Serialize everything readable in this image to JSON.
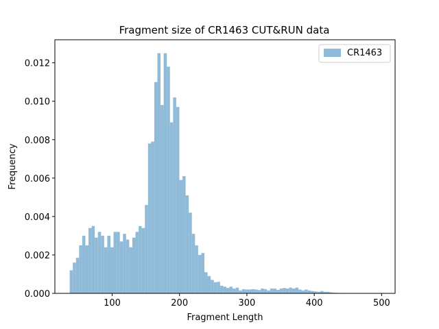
{
  "chart_data": {
    "type": "bar",
    "title": "Fragment size of CR1463 CUT&RUN data",
    "xlabel": "Fragment Length",
    "ylabel": "Frequency",
    "xlim": [
      15,
      520
    ],
    "ylim": [
      0,
      0.0132
    ],
    "xticks": [
      100,
      200,
      300,
      400,
      500
    ],
    "yticks": [
      0.0,
      0.002,
      0.004,
      0.006,
      0.008,
      0.01,
      0.012
    ],
    "ytick_labels": [
      "0.000",
      "0.002",
      "0.004",
      "0.006",
      "0.008",
      "0.010",
      "0.012"
    ],
    "legend": {
      "placement": "top-right",
      "entries": [
        "CR1463"
      ]
    },
    "color": "#8fbbd9",
    "grid": false,
    "bin_start": 37,
    "bin_width": 4.65,
    "series": [
      {
        "name": "CR1463",
        "values": [
          0.0012,
          0.0016,
          0.00185,
          0.0025,
          0.003,
          0.0025,
          0.0034,
          0.0035,
          0.0029,
          0.0032,
          0.003,
          0.0024,
          0.003,
          0.0024,
          0.0032,
          0.0032,
          0.0027,
          0.0031,
          0.0028,
          0.0024,
          0.0029,
          0.0032,
          0.0035,
          0.0034,
          0.0046,
          0.0078,
          0.0079,
          0.011,
          0.0125,
          0.0098,
          0.0125,
          0.0118,
          0.0089,
          0.0102,
          0.0097,
          0.0059,
          0.0061,
          0.0051,
          0.0042,
          0.0031,
          0.0025,
          0.002,
          0.0021,
          0.0011,
          0.0009,
          0.0007,
          0.00058,
          0.0006,
          0.0004,
          0.00035,
          0.00028,
          0.00035,
          0.00025,
          0.0003,
          0.00015,
          0.00022,
          0.0002,
          0.0002,
          0.00022,
          0.0002,
          0.00017,
          0.00025,
          0.00022,
          0.00015,
          0.00025,
          0.00025,
          0.00018,
          0.00025,
          0.00028,
          0.00025,
          0.0003,
          0.00025,
          0.0003,
          0.0002,
          0.00015,
          0.0002,
          0.00015,
          0.00012,
          0.0001,
          8e-05,
          0.00012,
          8e-05,
          8e-05,
          5e-05,
          3e-05,
          2e-05,
          2e-05,
          2e-05,
          2e-05,
          1e-05,
          1e-05,
          1e-05,
          1e-05,
          1e-05,
          1e-05,
          1e-05,
          1e-05,
          1e-05,
          1e-05,
          1e-05
        ]
      }
    ]
  }
}
